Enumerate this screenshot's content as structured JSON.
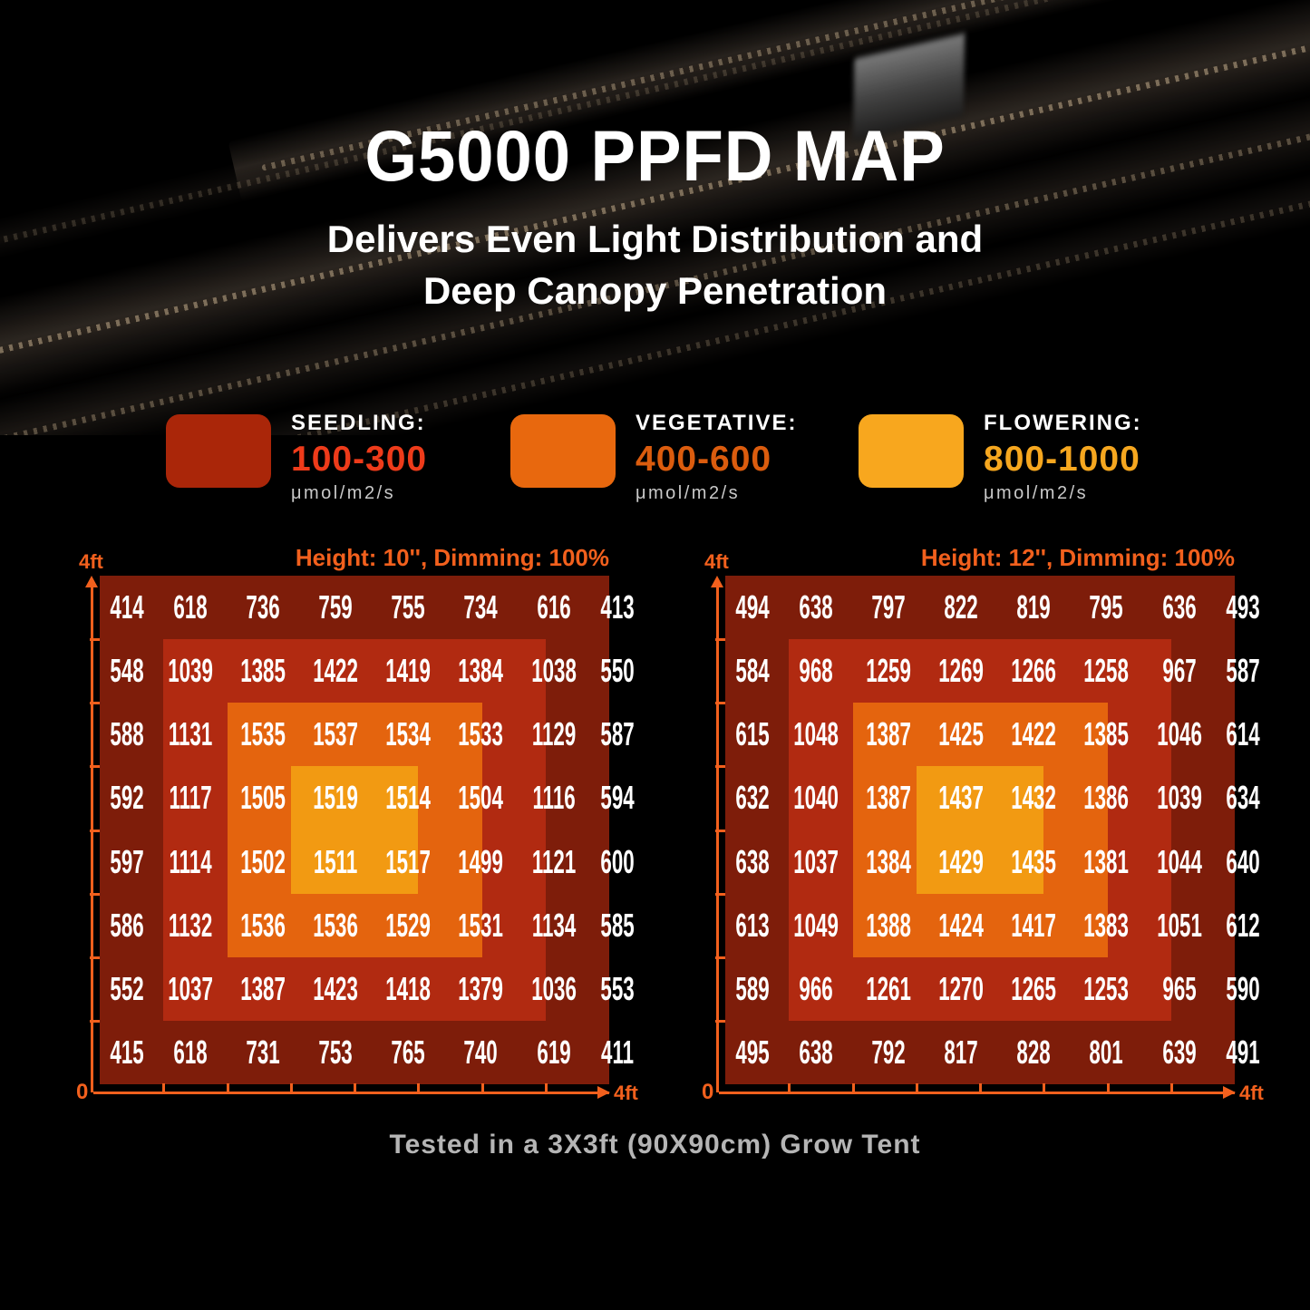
{
  "page": {
    "title": "G5000 PPFD MAP",
    "subtitle_line1": "Delivers Even Light Distribution and",
    "subtitle_line2": "Deep Canopy Penetration",
    "footer": "Tested in a 3X3ft (90X90cm) Grow Tent"
  },
  "colors": {
    "axis_orange": "#f2601d",
    "value_text": "#ffffff",
    "footer_text": "#b5b5b5"
  },
  "legend": {
    "items": [
      {
        "name": "seedling",
        "label": "SEEDLING:",
        "range": "100-300",
        "unit": "μmol/m2/s",
        "swatch_color": "#aa2609",
        "range_color": "#ee3b1a"
      },
      {
        "name": "vegetative",
        "label": "VEGETATIVE:",
        "range": "400-600",
        "unit": "μmol/m2/s",
        "swatch_color": "#e8680e",
        "range_color": "#db5c0e"
      },
      {
        "name": "flowering",
        "label": "FLOWERING:",
        "range": "800-1000",
        "unit": "μmol/m2/s",
        "swatch_color": "#f8a71e",
        "range_color": "#f6a71f"
      }
    ]
  },
  "chart_data": [
    {
      "type": "heatmap",
      "title": "Height: 10'', Dimming: 100%",
      "y_axis_label": "4ft",
      "x_axis_label": "4ft",
      "origin_label": "0",
      "unit": "μmol/m2/s",
      "axis_range_ft": [
        0,
        4
      ],
      "zone_colors": {
        "outer": "#7e1d0a",
        "mid": "#b12a11",
        "inner": "#e4640e",
        "center": "#f29a12"
      },
      "rows": [
        [
          414,
          618,
          736,
          759,
          755,
          734,
          616,
          413
        ],
        [
          548,
          1039,
          1385,
          1422,
          1419,
          1384,
          1038,
          550
        ],
        [
          588,
          1131,
          1535,
          1537,
          1534,
          1533,
          1129,
          587
        ],
        [
          592,
          1117,
          1505,
          1519,
          1514,
          1504,
          1116,
          594
        ],
        [
          597,
          1114,
          1502,
          1511,
          1517,
          1499,
          1121,
          600
        ],
        [
          586,
          1132,
          1536,
          1536,
          1529,
          1531,
          1134,
          585
        ],
        [
          552,
          1037,
          1387,
          1423,
          1418,
          1379,
          1036,
          553
        ],
        [
          415,
          618,
          731,
          753,
          765,
          740,
          619,
          411
        ]
      ]
    },
    {
      "type": "heatmap",
      "title": "Height: 12'', Dimming: 100%",
      "y_axis_label": "4ft",
      "x_axis_label": "4ft",
      "origin_label": "0",
      "unit": "μmol/m2/s",
      "axis_range_ft": [
        0,
        4
      ],
      "zone_colors": {
        "outer": "#7e1d0a",
        "mid": "#b12a11",
        "inner": "#e4640e",
        "center": "#f29a12"
      },
      "rows": [
        [
          494,
          638,
          797,
          822,
          819,
          795,
          636,
          493
        ],
        [
          584,
          968,
          1259,
          1269,
          1266,
          1258,
          967,
          587
        ],
        [
          615,
          1048,
          1387,
          1425,
          1422,
          1385,
          1046,
          614
        ],
        [
          632,
          1040,
          1387,
          1437,
          1432,
          1386,
          1039,
          634
        ],
        [
          638,
          1037,
          1384,
          1429,
          1435,
          1381,
          1044,
          640
        ],
        [
          613,
          1049,
          1388,
          1424,
          1417,
          1383,
          1051,
          612
        ],
        [
          589,
          966,
          1261,
          1270,
          1265,
          1253,
          965,
          590
        ],
        [
          495,
          638,
          792,
          817,
          828,
          801,
          639,
          491
        ]
      ]
    }
  ]
}
